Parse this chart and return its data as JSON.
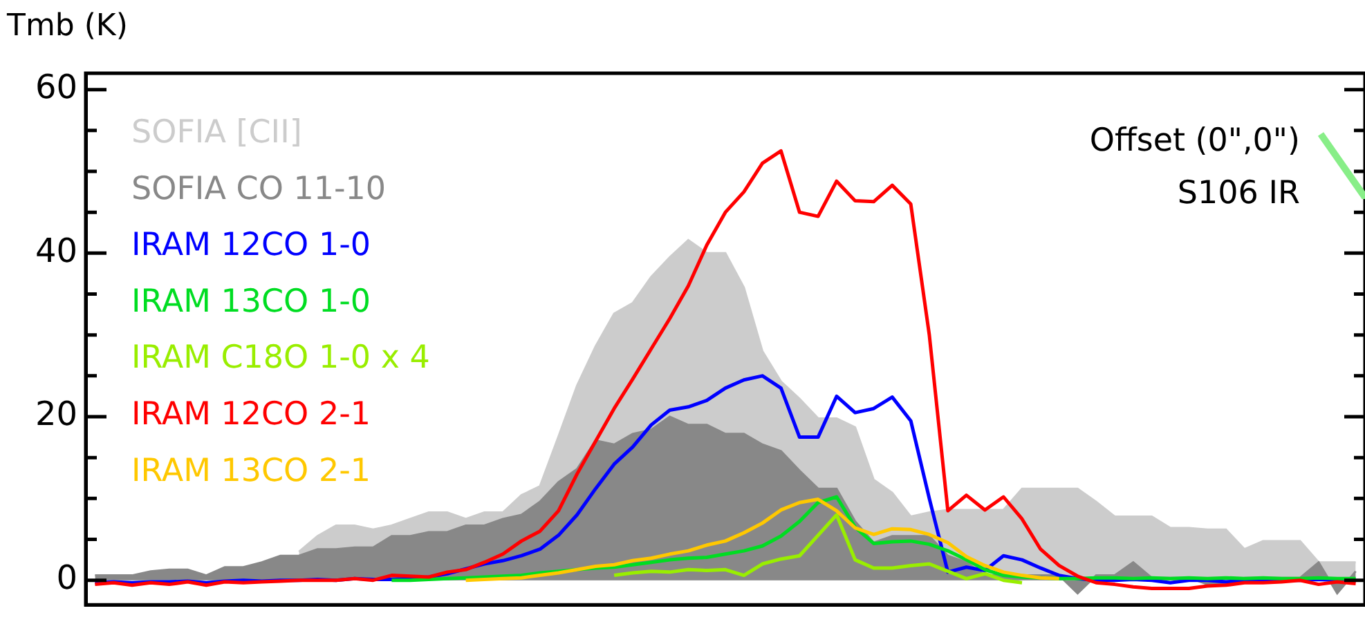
{
  "chart_data": {
    "type": "line",
    "ylabel": "Tmb (K)",
    "annotations": [
      "Offset (0\",0\")",
      "S106 IR"
    ],
    "categories": [
      null,
      null,
      null,
      null,
      null,
      null,
      null,
      null,
      null,
      null,
      null,
      null,
      null,
      null,
      null,
      null,
      null,
      null,
      null,
      null,
      null,
      null,
      null,
      null,
      null,
      null,
      null,
      null,
      null,
      null,
      null,
      null,
      null,
      null,
      null,
      null,
      null,
      null,
      null,
      null,
      null,
      null,
      null,
      null,
      null,
      null,
      null,
      null,
      null,
      null,
      null,
      null,
      null,
      null,
      null,
      null,
      null,
      null,
      null,
      null,
      null,
      null,
      null,
      null,
      null,
      null,
      null,
      null,
      null
    ],
    "series": [
      {
        "name": "SOFIA [CII]",
        "type": "area",
        "color": "#cccccc",
        "values": [
          null,
          null,
          null,
          null,
          null,
          null,
          null,
          null,
          1.5,
          2,
          null,
          3.5,
          5.4,
          6.7,
          6.7,
          6.2,
          6.7,
          7.5,
          8.3,
          8.3,
          7.5,
          8.3,
          8.3,
          10.4,
          11.5,
          17.6,
          23.8,
          28.6,
          32.6,
          33.9,
          37.1,
          39.5,
          41.6,
          40,
          40,
          35.8,
          28,
          24.3,
          22.2,
          19.8,
          19.8,
          18.7,
          12.3,
          10.7,
          7.8,
          8.3,
          8.6,
          8.6,
          8.6,
          8.6,
          11.2,
          11.2,
          11.2,
          11.2,
          9.6,
          7.8,
          7.8,
          7.8,
          6.4,
          6.4,
          6.2,
          6.2,
          3.8,
          4.8,
          4.8,
          4.8,
          2.2,
          2.2,
          2.2
        ]
      },
      {
        "name": "SOFIA CO 11-10",
        "type": "area",
        "color": "#888888",
        "values": [
          0.6,
          0.6,
          0.6,
          1.1,
          1.3,
          1.3,
          0.6,
          1.6,
          1.6,
          2.2,
          3,
          3,
          3.8,
          3.8,
          4,
          4,
          5.4,
          5.4,
          5.9,
          5.9,
          6.7,
          6.7,
          7.5,
          8,
          9.6,
          12,
          13.6,
          17.1,
          16.6,
          17.9,
          18.4,
          20,
          19,
          19,
          17.9,
          17.9,
          16.6,
          15.8,
          13.4,
          11.2,
          11.2,
          7.2,
          4.6,
          5.4,
          5.4,
          5.4,
          3,
          2.2,
          0.6,
          0.6,
          0.6,
          0.6,
          0.6,
          -1.6,
          0.6,
          0.6,
          2.2,
          0.3,
          0.3,
          0.3,
          -0.5,
          -0.5,
          0.3,
          0.3,
          0.3,
          0.3,
          2.2,
          -1.6,
          1.1
        ]
      },
      {
        "name": "IRAM 12CO 1-0",
        "color": "#0000ff",
        "values": [
          -0.3,
          -0.2,
          -0.3,
          -0.2,
          -0.2,
          -0.1,
          -0.3,
          -0.1,
          0,
          -0.1,
          0,
          0,
          0.1,
          0,
          0.2,
          0.1,
          0.1,
          0.2,
          0.4,
          0.8,
          1.4,
          2,
          2.4,
          3,
          3.8,
          5.5,
          8,
          11.2,
          14.2,
          16.3,
          19,
          20.8,
          21.2,
          22,
          23.5,
          24.5,
          25,
          23.5,
          17.5,
          17.5,
          22.5,
          20.5,
          21,
          22.4,
          19.5,
          10,
          1,
          1.6,
          1.2,
          3,
          2.5,
          1.5,
          0.6,
          0.2,
          0,
          0,
          0.1,
          0,
          -0.3,
          0,
          0,
          -0.2,
          0,
          0,
          0,
          0,
          0.1,
          0,
          0
        ]
      },
      {
        "name": "IRAM 13CO 1-0",
        "color": "#00dd22",
        "values": [
          null,
          null,
          null,
          null,
          null,
          null,
          null,
          null,
          null,
          null,
          null,
          null,
          null,
          null,
          null,
          null,
          0,
          0,
          0.1,
          0.2,
          0.3,
          0.4,
          0.5,
          0.6,
          0.9,
          1.1,
          1.3,
          1.5,
          1.6,
          1.9,
          2.2,
          2.5,
          2.7,
          2.8,
          3.2,
          3.6,
          4.2,
          5.4,
          7.2,
          9.5,
          10.2,
          6.5,
          4.5,
          4.7,
          4.8,
          4.4,
          3.6,
          2.5,
          1.3,
          0.6,
          0.4,
          0.3,
          0.2,
          0.2,
          0.3,
          0.3,
          0.2,
          0.3,
          0.2,
          0.3,
          0.2,
          0.3,
          0.2,
          0.3,
          0.2,
          0.2,
          0.3,
          0.2,
          0.2
        ]
      },
      {
        "name": "IRAM C18O 1-0 x 4",
        "color": "#99ee00",
        "values": [
          null,
          null,
          null,
          null,
          null,
          null,
          null,
          null,
          null,
          null,
          null,
          null,
          null,
          null,
          null,
          null,
          null,
          null,
          null,
          null,
          null,
          null,
          null,
          null,
          null,
          null,
          null,
          null,
          0.6,
          0.9,
          1.1,
          1,
          1.3,
          1.2,
          1.3,
          0.6,
          2,
          2.6,
          3,
          5.5,
          8,
          2.5,
          1.5,
          1.5,
          1.8,
          2,
          1.1,
          0.2,
          0.8,
          0,
          -0.3,
          null,
          null,
          null,
          null,
          null,
          null,
          null,
          null,
          null,
          null,
          null,
          null,
          null,
          null,
          null,
          null,
          null,
          null
        ]
      },
      {
        "name": "IRAM 12CO 2-1",
        "color": "#ff0000",
        "values": [
          -0.5,
          -0.3,
          -0.6,
          -0.3,
          -0.5,
          -0.2,
          -0.6,
          -0.2,
          -0.3,
          -0.2,
          -0.1,
          0,
          0,
          0,
          0.2,
          0,
          0.6,
          0.5,
          0.4,
          1,
          1.3,
          2.2,
          3.2,
          4.8,
          6,
          8.5,
          13,
          17,
          21,
          24.6,
          28.3,
          32,
          36,
          41,
          45,
          47.5,
          51,
          52.5,
          45,
          44.5,
          48.8,
          46.4,
          46.3,
          48.3,
          46,
          30,
          8.5,
          10.4,
          8.6,
          10.2,
          7.5,
          3.8,
          1.8,
          0.5,
          -0.3,
          -0.5,
          -0.8,
          -1,
          -1,
          -1,
          -0.7,
          -0.6,
          -0.3,
          -0.3,
          -0.2,
          0,
          -0.5,
          -0.2,
          -0.4
        ]
      },
      {
        "name": "IRAM 13CO 2-1",
        "color": "#ffc800",
        "values": [
          null,
          null,
          null,
          null,
          null,
          null,
          null,
          null,
          null,
          null,
          null,
          null,
          null,
          null,
          null,
          null,
          null,
          null,
          null,
          null,
          0,
          0.1,
          0.2,
          0.3,
          0.6,
          0.9,
          1.3,
          1.7,
          1.9,
          2.4,
          2.7,
          3.2,
          3.6,
          4.3,
          4.8,
          5.8,
          7,
          8.6,
          9.5,
          9.9,
          8.5,
          6.4,
          5.6,
          6.3,
          6.2,
          5.6,
          4.6,
          2.9,
          1.8,
          1,
          0.6,
          0.3,
          0.2,
          null,
          null,
          null,
          null,
          null,
          null,
          null,
          null,
          null,
          null,
          null,
          null,
          null,
          null,
          null,
          null
        ]
      }
    ],
    "ylim": [
      -3,
      62
    ],
    "yticks": [
      0,
      {
        "value": 5,
        "label": null
      },
      {
        "value": 10,
        "label": null
      },
      {
        "value": 15,
        "label": null
      },
      20,
      {
        "value": 25,
        "label": null
      },
      {
        "value": 30,
        "label": null
      },
      {
        "value": 35,
        "label": null
      },
      40,
      {
        "value": 45,
        "label": null
      },
      {
        "value": 50,
        "label": null
      },
      {
        "value": 55,
        "label": null
      },
      60
    ],
    "grid": false,
    "legend": "left",
    "tick_labels": "y",
    "marker": "none",
    "line_style": "solid"
  }
}
